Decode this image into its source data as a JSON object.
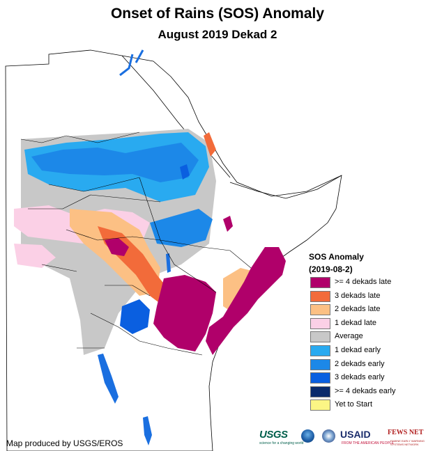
{
  "title": "Onset of Rains (SOS) Anomaly",
  "subtitle": "August 2019 Dekad 2",
  "legend": {
    "title": "SOS Anomaly",
    "date": "(2019-08-2)",
    "items": [
      {
        "label": ">= 4 dekads late",
        "color": "#b0006a"
      },
      {
        "label": "3 dekads late",
        "color": "#f26b3a"
      },
      {
        "label": "2 dekads late",
        "color": "#fcc084"
      },
      {
        "label": "1 dekad late",
        "color": "#fbd0e6"
      },
      {
        "label": "Average",
        "color": "#c8c8c8"
      },
      {
        "label": "1 dekad early",
        "color": "#29aaf0"
      },
      {
        "label": "2 dekads early",
        "color": "#1c88e8"
      },
      {
        "label": "3 dekads early",
        "color": "#0a5fe0"
      },
      {
        "label": ">= 4 dekads early",
        "color": "#0a2a6b"
      },
      {
        "label": "Yet to Start",
        "color": "#fbf685"
      }
    ]
  },
  "credit": "Map produced by USGS/EROS",
  "logos": {
    "usgs": "USGS",
    "usgs_tagline": "science for a changing world",
    "usaid": "USAID",
    "usaid_tagline": "FROM THE AMERICAN PEOPLE",
    "fewsnet": "FEWS NET",
    "fewsnet_tagline": "FAMINE EARLY WARNING SYSTEMS NETWORK"
  }
}
